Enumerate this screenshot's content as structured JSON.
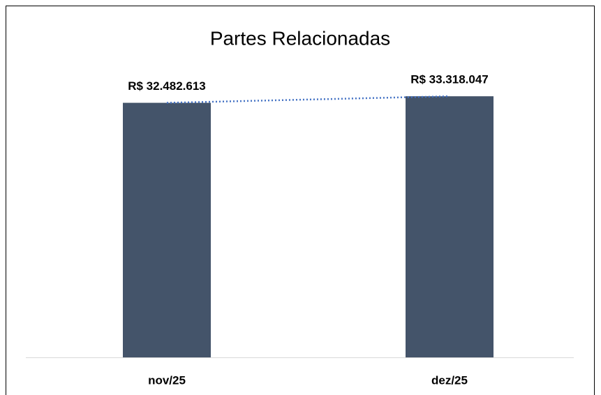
{
  "chart_data": {
    "type": "bar",
    "title": "Partes Relacionadas",
    "categories": [
      "nov/25",
      "dez/25"
    ],
    "values": [
      32482613,
      33318047
    ],
    "value_labels": [
      "R$ 32.482.613",
      "R$ 33.318.047"
    ],
    "color": "#44546a",
    "trendline": true,
    "trendline_color": "#4472c4",
    "ylim": [
      0,
      40000000
    ]
  }
}
